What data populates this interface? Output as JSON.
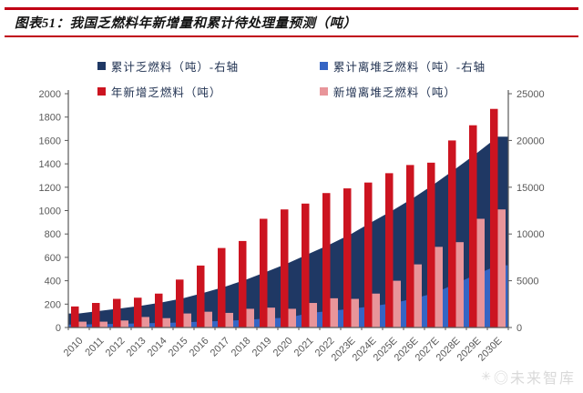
{
  "header": {
    "title": "图表51：我国乏燃料年新增量和累计待处理量预测（吨）",
    "rule_color": "#c00014"
  },
  "legend": {
    "items": [
      {
        "label": "累计乏燃料（吨）-右轴",
        "color": "#1f3864"
      },
      {
        "label": "累计离堆乏燃料（吨）-右轴",
        "color": "#3565c4"
      },
      {
        "label": "年新增乏燃料（吨）",
        "color": "#cc1420"
      },
      {
        "label": "新增离堆乏燃料（吨）",
        "color": "#e8959a"
      }
    ]
  },
  "chart_data": {
    "type": "combo",
    "title": "我国乏燃料年新增量和累计待处理量预测（吨）",
    "categories": [
      "2010",
      "2011",
      "2012",
      "2013",
      "2014",
      "2015",
      "2016",
      "2017",
      "2018",
      "2019",
      "2020",
      "2021",
      "2022",
      "2023E",
      "2024E",
      "2025E",
      "2026E",
      "2027E",
      "2028E",
      "2029E",
      "2030E"
    ],
    "series": [
      {
        "name": "累计乏燃料（吨）-右轴",
        "type": "area",
        "axis": "right",
        "color": "#1f3864",
        "data_name": "cumulative-spent-fuel-area",
        "values": [
          1500,
          1780,
          2040,
          2330,
          2700,
          3140,
          3730,
          4380,
          5130,
          6000,
          6900,
          7900,
          8900,
          10000,
          11300,
          12550,
          13900,
          15400,
          17000,
          18650,
          20400
        ]
      },
      {
        "name": "累计离堆乏燃料（吨）-右轴",
        "type": "area",
        "axis": "right",
        "color": "#3565c4",
        "data_name": "cumulative-offreactor-area",
        "values": [
          320,
          360,
          390,
          450,
          490,
          550,
          650,
          710,
          810,
          970,
          1040,
          1550,
          1780,
          2010,
          2270,
          2600,
          3100,
          3700,
          4700,
          5700,
          6650
        ]
      },
      {
        "name": "年新增乏燃料（吨）",
        "type": "bar",
        "axis": "left",
        "color": "#cc1420",
        "data_name": "annual-new-spent-fuel-bar",
        "values": [
          180,
          210,
          245,
          255,
          290,
          410,
          530,
          680,
          740,
          930,
          1010,
          1060,
          1150,
          1190,
          1240,
          1320,
          1390,
          1410,
          1600,
          1730,
          1870
        ]
      },
      {
        "name": "新增离堆乏燃料（吨）",
        "type": "bar",
        "axis": "left",
        "color": "#e8959a",
        "data_name": "new-offreactor-spent-fuel-bar",
        "values": [
          50,
          50,
          60,
          90,
          80,
          120,
          135,
          125,
          160,
          170,
          160,
          210,
          250,
          245,
          290,
          400,
          540,
          690,
          730,
          930,
          1010
        ]
      }
    ],
    "left_axis": {
      "min": 0,
      "max": 2000,
      "step": 200,
      "ticks": [
        0,
        200,
        400,
        600,
        800,
        1000,
        1200,
        1400,
        1600,
        1800,
        2000
      ]
    },
    "right_axis": {
      "min": 0,
      "max": 25000,
      "step": 5000,
      "ticks": [
        0,
        5000,
        10000,
        15000,
        20000,
        25000
      ]
    },
    "grid": false,
    "legend_position": "top",
    "x_label_rotation": -45
  },
  "watermark": {
    "icon": "✳",
    "text": "◎未来智库"
  }
}
